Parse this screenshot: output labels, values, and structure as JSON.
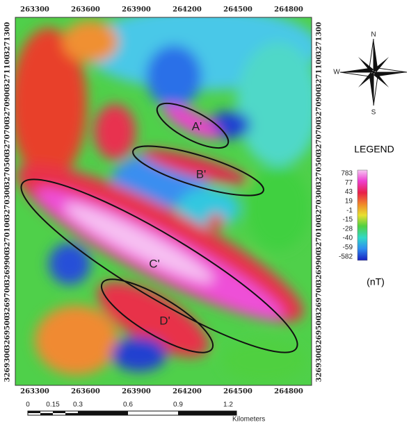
{
  "map": {
    "x_ticks": [
      263300,
      263600,
      263900,
      264200,
      264500,
      264800
    ],
    "y_ticks": [
      3271300,
      3271100,
      3270900,
      3270700,
      3270500,
      3270300,
      3270100,
      3269900,
      3269700,
      3269500,
      3269300
    ],
    "compass": {
      "north": "N",
      "west": "W",
      "south": "S"
    },
    "anomalies": [
      "A'",
      "B'",
      "C'",
      "D'"
    ],
    "legend": {
      "title": "LEGEND",
      "values": [
        783,
        77,
        43,
        19,
        -1,
        -15,
        -28,
        -40,
        -59,
        -582
      ],
      "unit": "(nT)"
    },
    "scale_bar": {
      "ticks": [
        "0",
        "0.15",
        "0.3",
        "0.6",
        "0.9",
        "1.2"
      ],
      "unit": "Kilometers"
    }
  }
}
